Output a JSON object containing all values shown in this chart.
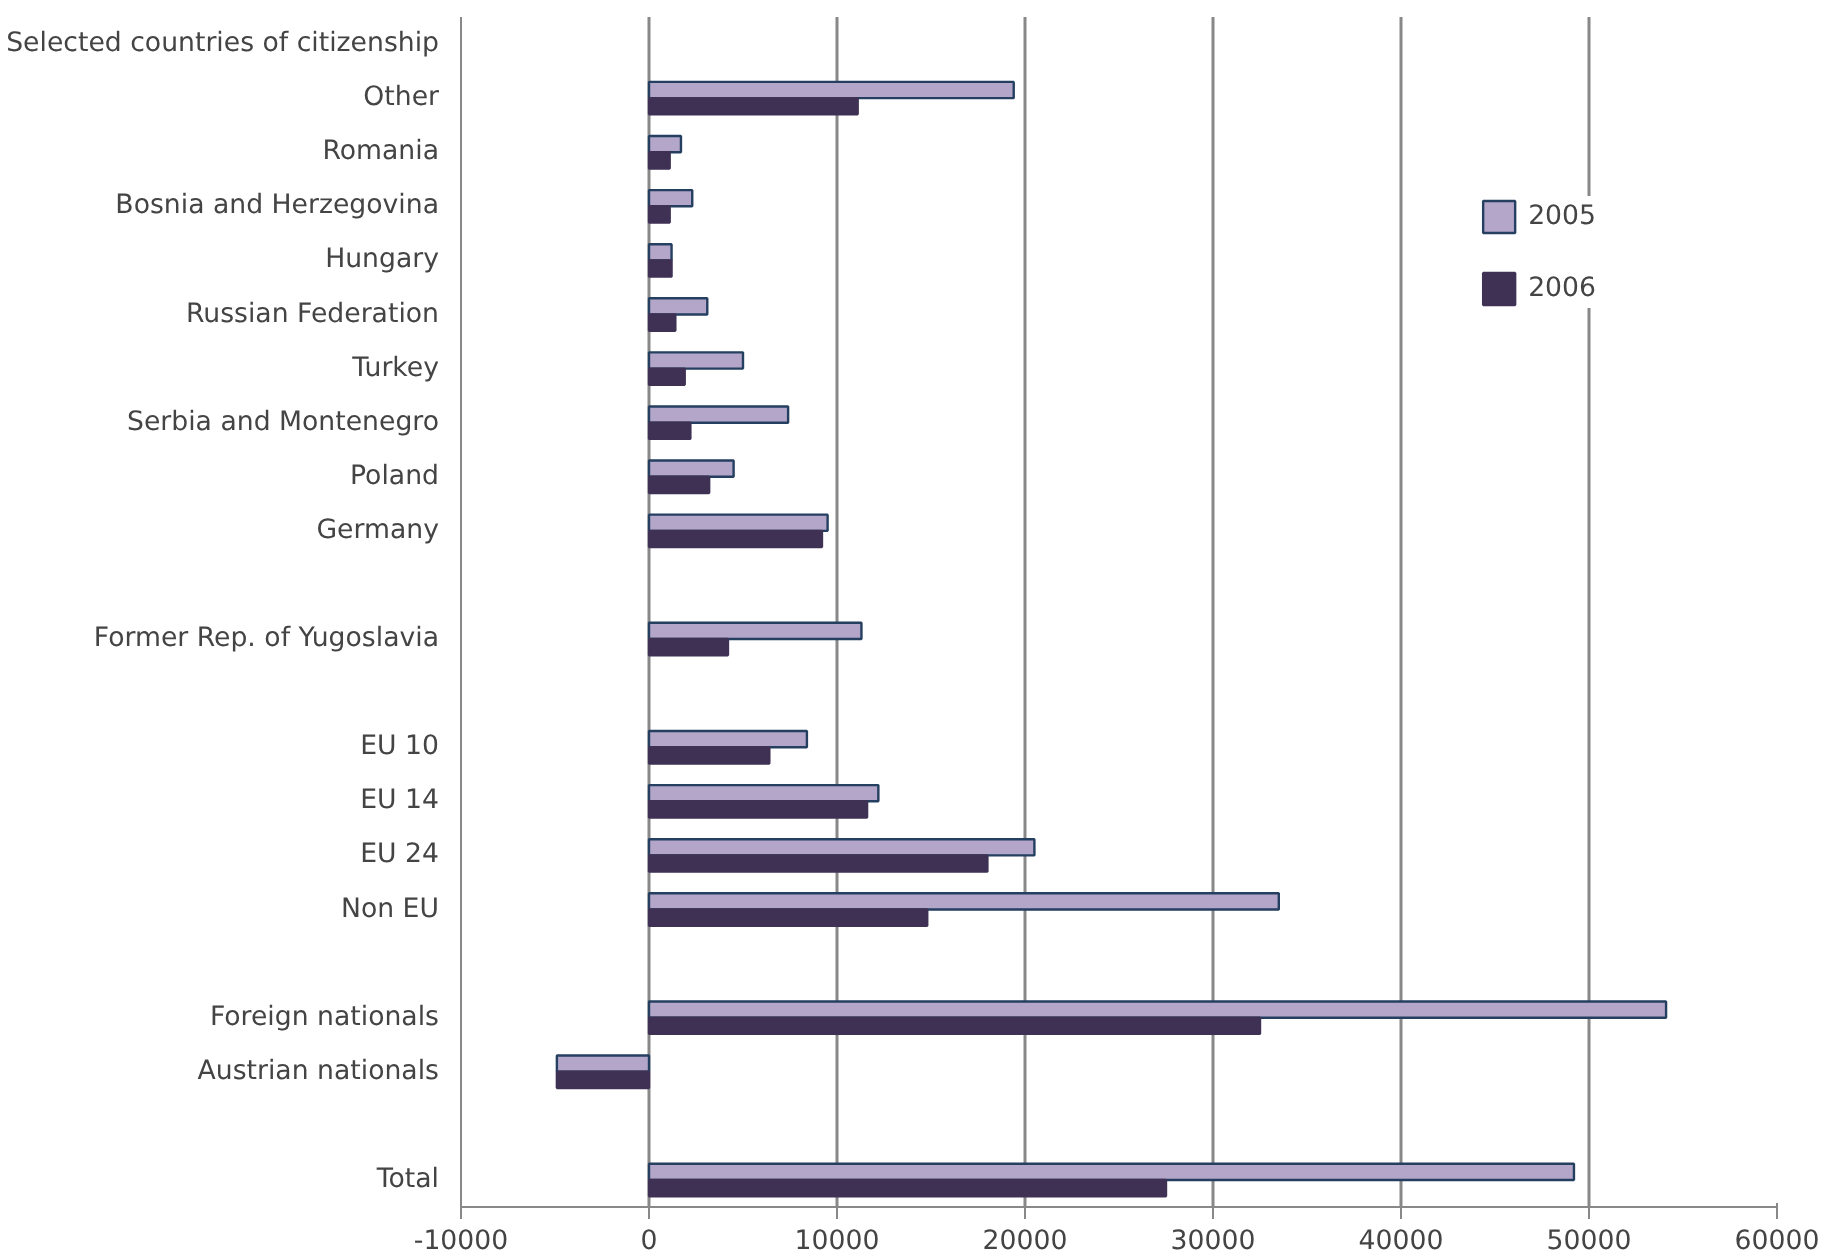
{
  "chart_data": {
    "type": "bar",
    "orientation": "horizontal",
    "categories": [
      "Selected countries of citizenship",
      "Other",
      "Romania",
      "Bosnia and Herzegovina",
      "Hungary",
      "Russian Federation",
      "Turkey",
      "Serbia and Montenegro",
      "Poland",
      "Germany",
      null,
      "Former Rep. of Yugoslavia",
      null,
      "EU 10",
      "EU 14",
      "EU 24",
      "Non EU",
      null,
      "Foreign nationals",
      "Austrian nationals",
      null,
      "Total"
    ],
    "series": [
      {
        "name": "2005",
        "color": "#b3a6c9",
        "values": [
          null,
          19400,
          1700,
          2300,
          1200,
          3100,
          5000,
          7400,
          4500,
          9500,
          null,
          11300,
          null,
          8400,
          12200,
          20500,
          33500,
          null,
          54100,
          -4900,
          null,
          49200
        ]
      },
      {
        "name": "2006",
        "color": "#3f3154",
        "values": [
          null,
          11100,
          1100,
          1100,
          1200,
          1400,
          1900,
          2200,
          3200,
          9200,
          null,
          4200,
          null,
          6400,
          11600,
          18000,
          14800,
          null,
          32500,
          -4900,
          null,
          27500
        ]
      }
    ],
    "xlim": [
      -10000,
      60000
    ],
    "xticks": [
      -10000,
      0,
      10000,
      20000,
      30000,
      40000,
      50000,
      60000
    ],
    "grid": "x",
    "legend": "right"
  }
}
